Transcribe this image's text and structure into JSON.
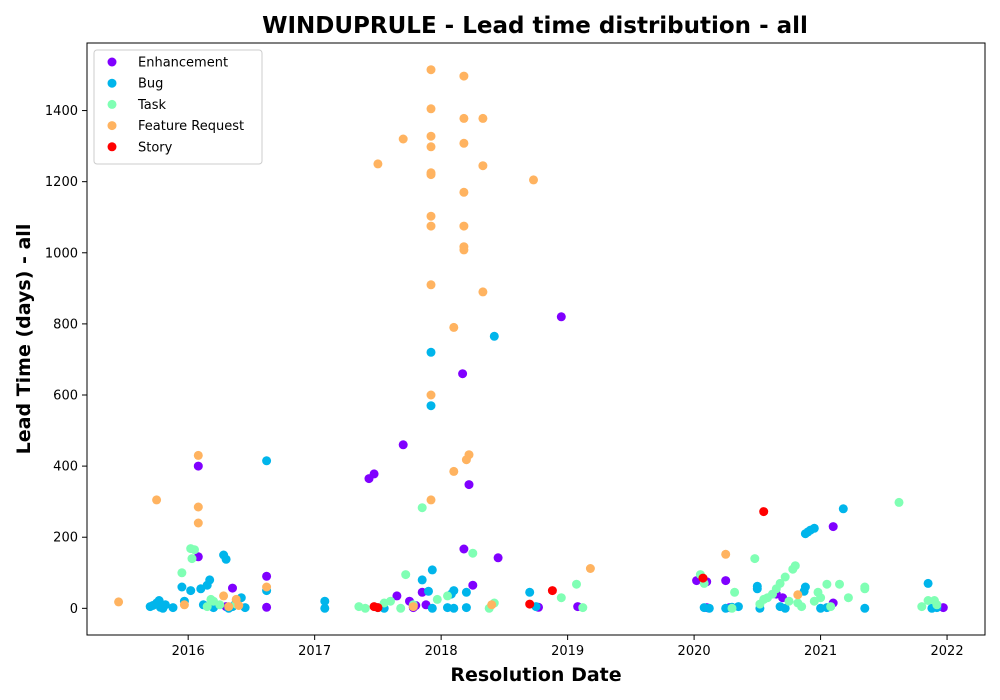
{
  "chart_data": {
    "type": "scatter",
    "title": "WINDUPRULE - Lead time distribution - all",
    "xlabel": "Resolution Date",
    "ylabel": "Lead Time (days) - all",
    "xlim": [
      2015.2,
      2022.3
    ],
    "ylim": [
      -75,
      1590
    ],
    "x_ticks": [
      2016,
      2017,
      2018,
      2019,
      2020,
      2021,
      2022
    ],
    "x_tick_labels": [
      "2016",
      "2017",
      "2018",
      "2019",
      "2020",
      "2021",
      "2022"
    ],
    "y_ticks": [
      0,
      200,
      400,
      600,
      800,
      1000,
      1200,
      1400
    ],
    "y_tick_labels": [
      "0",
      "200",
      "400",
      "600",
      "800",
      "1000",
      "1200",
      "1400"
    ],
    "legend_position": "top-left",
    "series": [
      {
        "name": "Enhancement",
        "color": "#8000ff",
        "points": [
          [
            2016.08,
            400
          ],
          [
            2016.08,
            145
          ],
          [
            2016.35,
            57
          ],
          [
            2016.3,
            5
          ],
          [
            2016.62,
            90
          ],
          [
            2016.62,
            3
          ],
          [
            2017.43,
            365
          ],
          [
            2017.47,
            378
          ],
          [
            2017.7,
            460
          ],
          [
            2017.65,
            35
          ],
          [
            2017.75,
            20
          ],
          [
            2017.8,
            8
          ],
          [
            2017.85,
            45
          ],
          [
            2017.88,
            10
          ],
          [
            2017.78,
            2
          ],
          [
            2018.17,
            660
          ],
          [
            2018.22,
            348
          ],
          [
            2018.18,
            167
          ],
          [
            2018.25,
            65
          ],
          [
            2018.45,
            142
          ],
          [
            2018.95,
            820
          ],
          [
            2018.77,
            3
          ],
          [
            2019.08,
            5
          ],
          [
            2020.02,
            78
          ],
          [
            2020.1,
            75
          ],
          [
            2020.1,
            2
          ],
          [
            2020.25,
            78
          ],
          [
            2020.28,
            2
          ],
          [
            2020.65,
            40
          ],
          [
            2020.7,
            30
          ],
          [
            2021.1,
            230
          ],
          [
            2021.1,
            15
          ],
          [
            2021.97,
            2
          ]
        ]
      },
      {
        "name": "Bug",
        "color": "#00b5eb",
        "points": [
          [
            2015.7,
            5
          ],
          [
            2015.72,
            8
          ],
          [
            2015.75,
            15
          ],
          [
            2015.77,
            22
          ],
          [
            2015.78,
            3
          ],
          [
            2015.8,
            0
          ],
          [
            2015.82,
            10
          ],
          [
            2015.88,
            2
          ],
          [
            2015.95,
            60
          ],
          [
            2015.97,
            20
          ],
          [
            2016.02,
            50
          ],
          [
            2016.1,
            55
          ],
          [
            2016.12,
            10
          ],
          [
            2016.15,
            65
          ],
          [
            2016.17,
            80
          ],
          [
            2016.2,
            2
          ],
          [
            2016.28,
            150
          ],
          [
            2016.3,
            138
          ],
          [
            2016.32,
            0
          ],
          [
            2016.35,
            5
          ],
          [
            2016.38,
            18
          ],
          [
            2016.42,
            30
          ],
          [
            2016.45,
            2
          ],
          [
            2016.62,
            415
          ],
          [
            2016.62,
            50
          ],
          [
            2017.08,
            20
          ],
          [
            2017.08,
            0
          ],
          [
            2017.5,
            2
          ],
          [
            2017.55,
            0
          ],
          [
            2017.85,
            80
          ],
          [
            2017.9,
            48
          ],
          [
            2017.92,
            720
          ],
          [
            2017.92,
            570
          ],
          [
            2017.93,
            108
          ],
          [
            2017.93,
            0
          ],
          [
            2018.05,
            2
          ],
          [
            2018.08,
            40
          ],
          [
            2018.1,
            50
          ],
          [
            2018.1,
            0
          ],
          [
            2018.2,
            45
          ],
          [
            2018.2,
            2
          ],
          [
            2018.42,
            765
          ],
          [
            2018.7,
            45
          ],
          [
            2018.75,
            5
          ],
          [
            2020.08,
            2
          ],
          [
            2020.12,
            0
          ],
          [
            2020.25,
            0
          ],
          [
            2020.3,
            3
          ],
          [
            2020.35,
            5
          ],
          [
            2020.5,
            62
          ],
          [
            2020.5,
            55
          ],
          [
            2020.52,
            0
          ],
          [
            2020.68,
            5
          ],
          [
            2020.72,
            0
          ],
          [
            2020.87,
            48
          ],
          [
            2020.88,
            60
          ],
          [
            2020.88,
            210
          ],
          [
            2020.9,
            215
          ],
          [
            2020.92,
            220
          ],
          [
            2020.95,
            225
          ],
          [
            2021.0,
            0
          ],
          [
            2021.05,
            2
          ],
          [
            2021.18,
            280
          ],
          [
            2021.35,
            0
          ],
          [
            2021.85,
            70
          ],
          [
            2021.88,
            0
          ],
          [
            2021.92,
            2
          ]
        ]
      },
      {
        "name": "Task",
        "color": "#80ffb4",
        "points": [
          [
            2015.95,
            100
          ],
          [
            2016.02,
            168
          ],
          [
            2016.05,
            165
          ],
          [
            2016.03,
            140
          ],
          [
            2016.18,
            25
          ],
          [
            2016.2,
            20
          ],
          [
            2016.15,
            5
          ],
          [
            2016.25,
            10
          ],
          [
            2016.38,
            12
          ],
          [
            2017.35,
            5
          ],
          [
            2017.4,
            0
          ],
          [
            2017.55,
            15
          ],
          [
            2017.6,
            20
          ],
          [
            2017.68,
            0
          ],
          [
            2017.72,
            95
          ],
          [
            2017.78,
            10
          ],
          [
            2017.85,
            283
          ],
          [
            2017.97,
            25
          ],
          [
            2018.05,
            35
          ],
          [
            2018.25,
            155
          ],
          [
            2018.38,
            0
          ],
          [
            2018.42,
            15
          ],
          [
            2018.95,
            30
          ],
          [
            2019.07,
            68
          ],
          [
            2019.12,
            2
          ],
          [
            2020.05,
            95
          ],
          [
            2020.08,
            70
          ],
          [
            2020.3,
            0
          ],
          [
            2020.32,
            45
          ],
          [
            2020.48,
            140
          ],
          [
            2020.52,
            12
          ],
          [
            2020.55,
            25
          ],
          [
            2020.58,
            30
          ],
          [
            2020.62,
            40
          ],
          [
            2020.65,
            55
          ],
          [
            2020.68,
            70
          ],
          [
            2020.72,
            88
          ],
          [
            2020.75,
            20
          ],
          [
            2020.78,
            110
          ],
          [
            2020.8,
            120
          ],
          [
            2020.82,
            15
          ],
          [
            2020.85,
            5
          ],
          [
            2020.95,
            20
          ],
          [
            2020.98,
            45
          ],
          [
            2021.0,
            30
          ],
          [
            2021.05,
            68
          ],
          [
            2021.08,
            5
          ],
          [
            2021.15,
            68
          ],
          [
            2021.22,
            30
          ],
          [
            2021.35,
            55
          ],
          [
            2021.35,
            60
          ],
          [
            2021.62,
            298
          ],
          [
            2021.8,
            5
          ],
          [
            2021.85,
            22
          ],
          [
            2021.9,
            22
          ],
          [
            2021.92,
            10
          ]
        ]
      },
      {
        "name": "Feature Request",
        "color": "#ffb360",
        "points": [
          [
            2015.45,
            18
          ],
          [
            2015.75,
            305
          ],
          [
            2015.97,
            10
          ],
          [
            2016.08,
            430
          ],
          [
            2016.08,
            285
          ],
          [
            2016.08,
            240
          ],
          [
            2016.28,
            35
          ],
          [
            2016.32,
            5
          ],
          [
            2016.38,
            25
          ],
          [
            2016.4,
            8
          ],
          [
            2016.62,
            60
          ],
          [
            2017.5,
            1250
          ],
          [
            2017.7,
            1320
          ],
          [
            2017.78,
            5
          ],
          [
            2017.92,
            1515
          ],
          [
            2017.92,
            1405
          ],
          [
            2017.92,
            1328
          ],
          [
            2017.92,
            1298
          ],
          [
            2017.92,
            1225
          ],
          [
            2017.92,
            1220
          ],
          [
            2017.92,
            1103
          ],
          [
            2017.92,
            1075
          ],
          [
            2017.92,
            910
          ],
          [
            2017.92,
            600
          ],
          [
            2017.92,
            305
          ],
          [
            2018.1,
            790
          ],
          [
            2018.1,
            385
          ],
          [
            2018.18,
            1497
          ],
          [
            2018.18,
            1378
          ],
          [
            2018.18,
            1308
          ],
          [
            2018.18,
            1170
          ],
          [
            2018.18,
            1075
          ],
          [
            2018.18,
            1017
          ],
          [
            2018.18,
            1008
          ],
          [
            2018.2,
            418
          ],
          [
            2018.22,
            432
          ],
          [
            2018.33,
            1378
          ],
          [
            2018.33,
            1245
          ],
          [
            2018.33,
            890
          ],
          [
            2018.4,
            10
          ],
          [
            2018.73,
            1205
          ],
          [
            2019.18,
            112
          ],
          [
            2020.25,
            152
          ],
          [
            2020.82,
            38
          ]
        ]
      },
      {
        "name": "Story",
        "color": "#ff0000",
        "points": [
          [
            2017.47,
            5
          ],
          [
            2017.5,
            2
          ],
          [
            2018.7,
            12
          ],
          [
            2018.88,
            50
          ],
          [
            2020.07,
            85
          ],
          [
            2020.55,
            272
          ]
        ]
      }
    ]
  }
}
